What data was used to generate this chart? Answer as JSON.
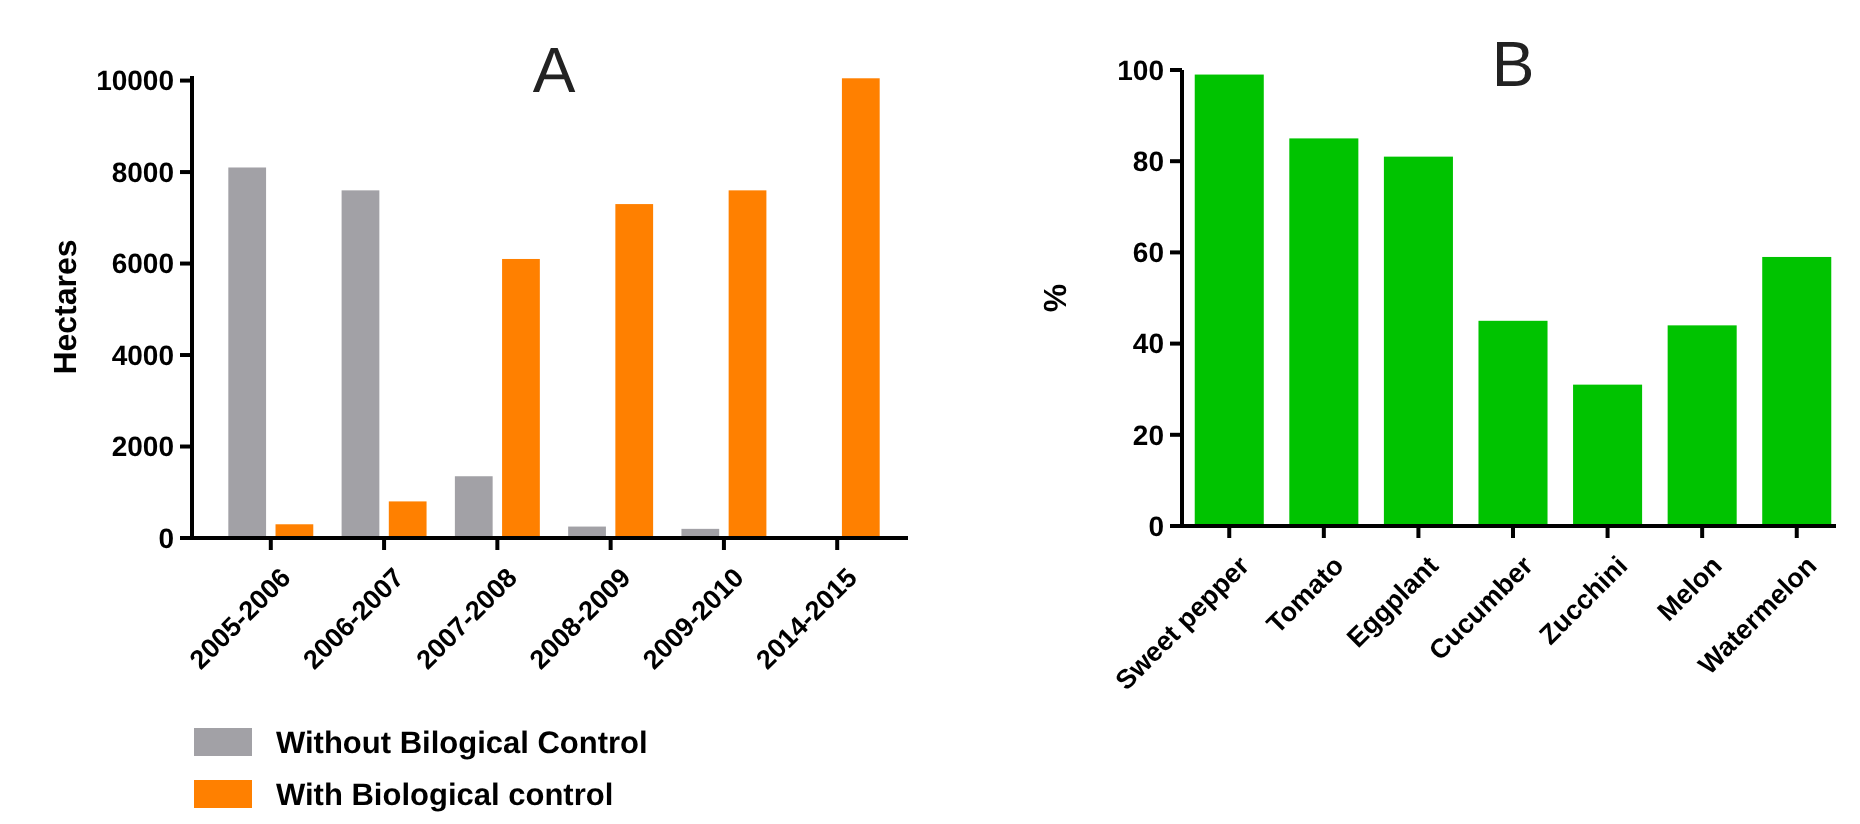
{
  "chart_data": [
    {
      "type": "bar",
      "title": "A",
      "ylabel": "Hectares",
      "categories": [
        "2005-2006",
        "2006-2007",
        "2007-2008",
        "2008-2009",
        "2009-2010",
        "2014-2015"
      ],
      "series": [
        {
          "name": "Without Bilogical Control",
          "color": "#a2a1a6",
          "values": [
            8100,
            7600,
            1350,
            250,
            200,
            null
          ]
        },
        {
          "name": "With Biological control",
          "color": "#ff8000",
          "values": [
            300,
            800,
            6100,
            7300,
            7600,
            10050
          ]
        }
      ],
      "ylim": [
        0,
        10100
      ],
      "yticks": [
        0,
        2000,
        4000,
        6000,
        8000,
        10000
      ],
      "grid": false,
      "legend": "bottom"
    },
    {
      "type": "bar",
      "title": "B",
      "ylabel": "%",
      "categories": [
        "Sweet pepper",
        "Tomato",
        "Eggplant",
        "Cucumber",
        "Zucchini",
        "Melon",
        "Watermelon"
      ],
      "series": [
        {
          "color": "#00c300",
          "values": [
            99,
            85,
            81,
            45,
            31,
            44,
            59
          ]
        }
      ],
      "ylim": [
        0,
        100
      ],
      "yticks": [
        0,
        20,
        40,
        60,
        80,
        100
      ],
      "grid": false,
      "legend": false
    }
  ]
}
